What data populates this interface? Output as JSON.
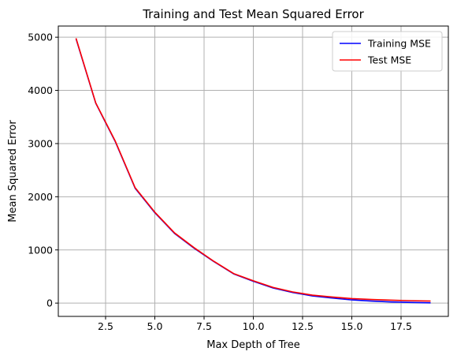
{
  "chart_data": {
    "type": "line",
    "title": "Training and Test Mean Squared Error",
    "xlabel": "Max Depth of Tree",
    "ylabel": "Mean Squared Error",
    "xlim": [
      0.1,
      19.9
    ],
    "ylim": [
      -250,
      5210
    ],
    "xticks": [
      2.5,
      5.0,
      7.5,
      10.0,
      12.5,
      15.0,
      17.5
    ],
    "xtick_labels": [
      "2.5",
      "5.0",
      "7.5",
      "10.0",
      "12.5",
      "15.0",
      "17.5"
    ],
    "yticks": [
      0,
      1000,
      2000,
      3000,
      4000,
      5000
    ],
    "ytick_labels": [
      "0",
      "1000",
      "2000",
      "3000",
      "4000",
      "5000"
    ],
    "grid": true,
    "legend_position": "top-right",
    "x": [
      1,
      2,
      3,
      4,
      5,
      6,
      7,
      8,
      9,
      10,
      11,
      12,
      13,
      14,
      15,
      16,
      17,
      18,
      19
    ],
    "series": [
      {
        "name": "Training MSE",
        "color": "#0000ff",
        "values": [
          4970,
          3760,
          3030,
          2160,
          1700,
          1310,
          1030,
          780,
          550,
          410,
          285,
          200,
          135,
          95,
          60,
          38,
          22,
          12,
          5
        ]
      },
      {
        "name": "Test MSE",
        "color": "#ff0000",
        "values": [
          4980,
          3765,
          3040,
          2170,
          1710,
          1320,
          1040,
          785,
          555,
          420,
          295,
          210,
          150,
          115,
          85,
          68,
          55,
          45,
          38
        ]
      }
    ]
  }
}
